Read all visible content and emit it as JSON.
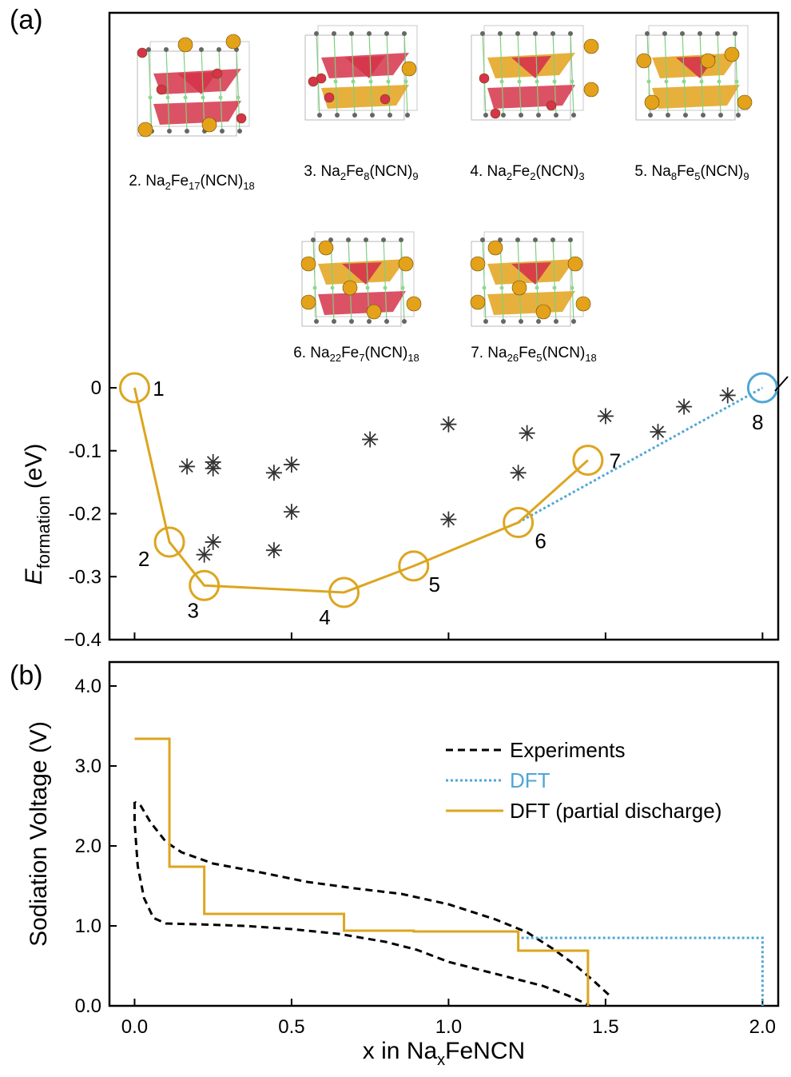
{
  "figure": {
    "panel_a_label": "(a)",
    "panel_b_label": "(b)",
    "structures": [
      {
        "number": "2",
        "parts": [
          [
            "2. Na",
            ""
          ],
          [
            "2",
            "sub"
          ],
          [
            "Fe",
            ""
          ],
          [
            "17",
            "sub"
          ],
          [
            "(NCN)",
            ""
          ],
          [
            "18",
            "sub"
          ]
        ]
      },
      {
        "number": "3",
        "parts": [
          [
            "3. Na",
            ""
          ],
          [
            "2",
            "sub"
          ],
          [
            "Fe",
            ""
          ],
          [
            "8",
            "sub"
          ],
          [
            "(NCN)",
            ""
          ],
          [
            "9",
            "sub"
          ]
        ]
      },
      {
        "number": "4",
        "parts": [
          [
            "4. Na",
            ""
          ],
          [
            "2",
            "sub"
          ],
          [
            "Fe",
            ""
          ],
          [
            "2",
            "sub"
          ],
          [
            "(NCN)",
            ""
          ],
          [
            "3",
            "sub"
          ]
        ]
      },
      {
        "number": "5",
        "parts": [
          [
            "5. Na",
            ""
          ],
          [
            "8",
            "sub"
          ],
          [
            "Fe",
            ""
          ],
          [
            "5",
            "sub"
          ],
          [
            "(NCN)",
            ""
          ],
          [
            "9",
            "sub"
          ]
        ]
      },
      {
        "number": "6",
        "parts": [
          [
            "6. Na",
            ""
          ],
          [
            "22",
            "sub"
          ],
          [
            "Fe",
            ""
          ],
          [
            "7",
            "sub"
          ],
          [
            "(NCN)",
            ""
          ],
          [
            "18",
            "sub"
          ]
        ]
      },
      {
        "number": "7",
        "parts": [
          [
            "7. Na",
            ""
          ],
          [
            "26",
            "sub"
          ],
          [
            "Fe",
            ""
          ],
          [
            "5",
            "sub"
          ],
          [
            "(NCN)",
            ""
          ],
          [
            "18",
            "sub"
          ]
        ]
      }
    ],
    "x_axis_title_parts": [
      [
        "x in Na",
        ""
      ],
      [
        "x",
        "sub"
      ],
      [
        "FeNCN",
        ""
      ]
    ]
  },
  "chart_data": [
    {
      "type": "scatter",
      "panel": "a",
      "ylabel_parts": [
        [
          "E",
          "italic"
        ],
        [
          "formation",
          "sub"
        ],
        [
          " (eV)",
          ""
        ]
      ],
      "xlim": [
        -0.08,
        2.05
      ],
      "ylim": [
        -0.4,
        0.0
      ],
      "y_ticks": [
        0,
        -0.1,
        -0.2,
        -0.3,
        -0.4
      ],
      "y_tick_labels": [
        "0",
        "-0.1",
        "-0.2",
        "-0.3",
        "−0.4"
      ],
      "colors": {
        "stable": "#DDA51F",
        "dft": "#4FA6D6",
        "unstable": "#333333"
      },
      "stable_points": [
        {
          "label": "1",
          "x": 0.0,
          "y": 0.0
        },
        {
          "label": "2",
          "x": 0.111,
          "y": -0.245
        },
        {
          "label": "3",
          "x": 0.222,
          "y": -0.314
        },
        {
          "label": "4",
          "x": 0.667,
          "y": -0.325
        },
        {
          "label": "5",
          "x": 0.889,
          "y": -0.283
        },
        {
          "label": "6",
          "x": 1.222,
          "y": -0.214
        },
        {
          "label": "7",
          "x": 1.444,
          "y": -0.115
        }
      ],
      "dft_point": {
        "label": "8",
        "x": 2.0,
        "y": 0.0
      },
      "dft_dotted_line": [
        [
          1.222,
          -0.214
        ],
        [
          2.0,
          0.0
        ]
      ],
      "unstable_points": [
        [
          0.167,
          -0.125
        ],
        [
          0.25,
          -0.118
        ],
        [
          0.25,
          -0.128
        ],
        [
          0.25,
          -0.245
        ],
        [
          0.222,
          -0.265
        ],
        [
          0.444,
          -0.135
        ],
        [
          0.5,
          -0.122
        ],
        [
          0.5,
          -0.197
        ],
        [
          0.444,
          -0.258
        ],
        [
          0.75,
          -0.082
        ],
        [
          1.0,
          -0.058
        ],
        [
          1.0,
          -0.209
        ],
        [
          1.222,
          -0.135
        ],
        [
          1.25,
          -0.072
        ],
        [
          1.5,
          -0.045
        ],
        [
          1.667,
          -0.07
        ],
        [
          1.75,
          -0.03
        ],
        [
          1.889,
          -0.012
        ]
      ]
    },
    {
      "type": "line",
      "panel": "b",
      "ylabel": "Sodiation Voltage (V)",
      "xlim": [
        -0.08,
        2.05
      ],
      "ylim": [
        0.0,
        4.3
      ],
      "x_ticks": [
        0.0,
        0.5,
        1.0,
        1.5,
        2.0
      ],
      "x_tick_labels": [
        "0.0",
        "0.5",
        "1.0",
        "1.5",
        "2.0"
      ],
      "y_ticks": [
        0.0,
        1.0,
        2.0,
        3.0,
        4.0
      ],
      "y_tick_labels": [
        "0.0",
        "1.0",
        "2.0",
        "3.0",
        "4.0"
      ],
      "legend_position": "center-right",
      "series": [
        {
          "name": "Experiments",
          "style": "dashed",
          "color": "#000000",
          "points": [
            [
              1.51,
              0.14
            ],
            [
              1.46,
              0.32
            ],
            [
              1.4,
              0.52
            ],
            [
              1.33,
              0.72
            ],
            [
              1.25,
              0.92
            ],
            [
              1.15,
              1.08
            ],
            [
              1.0,
              1.27
            ],
            [
              0.85,
              1.4
            ],
            [
              0.7,
              1.47
            ],
            [
              0.55,
              1.55
            ],
            [
              0.4,
              1.67
            ],
            [
              0.25,
              1.78
            ],
            [
              0.15,
              1.92
            ],
            [
              0.1,
              2.05
            ],
            [
              0.05,
              2.3
            ],
            [
              0.02,
              2.5
            ],
            [
              0.0,
              2.55
            ]
          ]
        },
        {
          "name": "Experiments",
          "legend": false,
          "style": "dashed",
          "color": "#000000",
          "points": [
            [
              0.0,
              2.55
            ],
            [
              0.0,
              2.3
            ],
            [
              0.01,
              1.75
            ],
            [
              0.03,
              1.35
            ],
            [
              0.06,
              1.1
            ],
            [
              0.1,
              1.03
            ],
            [
              0.2,
              1.02
            ],
            [
              0.35,
              1.0
            ],
            [
              0.5,
              0.96
            ],
            [
              0.65,
              0.9
            ],
            [
              0.8,
              0.8
            ],
            [
              0.9,
              0.7
            ],
            [
              1.0,
              0.55
            ],
            [
              1.1,
              0.45
            ],
            [
              1.2,
              0.35
            ],
            [
              1.3,
              0.25
            ],
            [
              1.38,
              0.13
            ],
            [
              1.43,
              0.04
            ],
            [
              1.45,
              0.0
            ]
          ]
        },
        {
          "name": "DFT",
          "style": "dotted",
          "color": "#4FA6D6",
          "points": [
            [
              1.222,
              0.93
            ],
            [
              1.222,
              0.85
            ],
            [
              2.0,
              0.85
            ],
            [
              2.0,
              0.0
            ]
          ]
        },
        {
          "name": "DFT (partial discharge)",
          "style": "solid",
          "color": "#DDA51F",
          "points": [
            [
              0.0,
              3.34
            ],
            [
              0.111,
              3.34
            ],
            [
              0.111,
              1.74
            ],
            [
              0.222,
              1.74
            ],
            [
              0.222,
              1.15
            ],
            [
              0.667,
              1.15
            ],
            [
              0.667,
              0.94
            ],
            [
              0.889,
              0.94
            ],
            [
              0.889,
              0.93
            ],
            [
              1.222,
              0.93
            ],
            [
              1.222,
              0.69
            ],
            [
              1.444,
              0.69
            ],
            [
              1.444,
              0.0
            ]
          ]
        }
      ]
    }
  ]
}
